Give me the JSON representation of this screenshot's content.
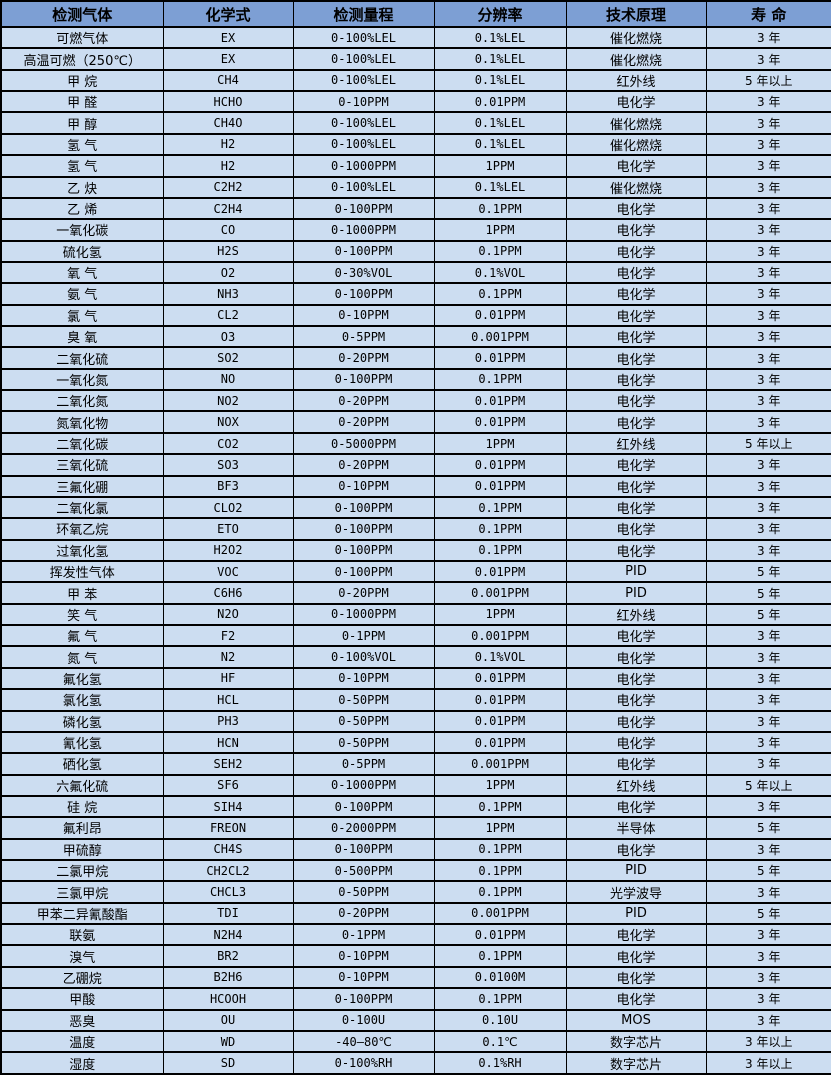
{
  "table": {
    "headers": [
      "检测气体",
      "化学式",
      "检测量程",
      "分辨率",
      "技术原理",
      "寿 命"
    ],
    "column_keys": [
      "gas",
      "formula",
      "range",
      "resolution",
      "principle",
      "lifespan"
    ],
    "rows": [
      [
        "可燃气体",
        "EX",
        "0-100%LEL",
        "0.1%LEL",
        "催化燃烧",
        "3 年"
      ],
      [
        "高温可燃（250℃）",
        "EX",
        "0-100%LEL",
        "0.1%LEL",
        "催化燃烧",
        "3 年"
      ],
      [
        "甲 烷",
        "CH4",
        "0-100%LEL",
        "0.1%LEL",
        "红外线",
        "5 年以上"
      ],
      [
        "甲 醛",
        "HCHO",
        "0-10PPM",
        "0.01PPM",
        "电化学",
        "3 年"
      ],
      [
        "甲 醇",
        "CH4O",
        "0-100%LEL",
        "0.1%LEL",
        "催化燃烧",
        "3 年"
      ],
      [
        "氢 气",
        "H2",
        "0-100%LEL",
        "0.1%LEL",
        "催化燃烧",
        "3 年"
      ],
      [
        "氢 气",
        "H2",
        "0-1000PPM",
        "1PPM",
        "电化学",
        "3 年"
      ],
      [
        "乙 炔",
        "C2H2",
        "0-100%LEL",
        "0.1%LEL",
        "催化燃烧",
        "3 年"
      ],
      [
        "乙 烯",
        "C2H4",
        "0-100PPM",
        "0.1PPM",
        "电化学",
        "3 年"
      ],
      [
        "一氧化碳",
        "CO",
        "0-1000PPM",
        "1PPM",
        "电化学",
        "3 年"
      ],
      [
        "硫化氢",
        "H2S",
        "0-100PPM",
        "0.1PPM",
        "电化学",
        "3 年"
      ],
      [
        "氧 气",
        "O2",
        "0-30%VOL",
        "0.1%VOL",
        "电化学",
        "3 年"
      ],
      [
        "氨 气",
        "NH3",
        "0-100PPM",
        "0.1PPM",
        "电化学",
        "3 年"
      ],
      [
        "氯 气",
        "CL2",
        "0-10PPM",
        "0.01PPM",
        "电化学",
        "3 年"
      ],
      [
        "臭 氧",
        "O3",
        "0-5PPM",
        "0.001PPM",
        "电化学",
        "3 年"
      ],
      [
        "二氧化硫",
        "SO2",
        "0-20PPM",
        "0.01PPM",
        "电化学",
        "3 年"
      ],
      [
        "一氧化氮",
        "NO",
        "0-100PPM",
        "0.1PPM",
        "电化学",
        "3 年"
      ],
      [
        "二氧化氮",
        "NO2",
        "0-20PPM",
        "0.01PPM",
        "电化学",
        "3 年"
      ],
      [
        "氮氧化物",
        "NOX",
        "0-20PPM",
        "0.01PPM",
        "电化学",
        "3 年"
      ],
      [
        "二氧化碳",
        "CO2",
        "0-5000PPM",
        "1PPM",
        "红外线",
        "5 年以上"
      ],
      [
        "三氧化硫",
        "SO3",
        "0-20PPM",
        "0.01PPM",
        "电化学",
        "3 年"
      ],
      [
        "三氟化硼",
        "BF3",
        "0-10PPM",
        "0.01PPM",
        "电化学",
        "3 年"
      ],
      [
        "二氧化氯",
        "CLO2",
        "0-100PPM",
        "0.1PPM",
        "电化学",
        "3 年"
      ],
      [
        "环氧乙烷",
        "ETO",
        "0-100PPM",
        "0.1PPM",
        "电化学",
        "3 年"
      ],
      [
        "过氧化氢",
        "H2O2",
        "0-100PPM",
        "0.1PPM",
        "电化学",
        "3 年"
      ],
      [
        "挥发性气体",
        "VOC",
        "0-100PPM",
        "0.01PPM",
        "PID",
        "5 年"
      ],
      [
        "甲 苯",
        "C6H6",
        "0-20PPM",
        "0.001PPM",
        "PID",
        "5 年"
      ],
      [
        "笑 气",
        "N2O",
        "0-1000PPM",
        "1PPM",
        "红外线",
        "5 年"
      ],
      [
        "氟 气",
        "F2",
        "0-1PPM",
        "0.001PPM",
        "电化学",
        "3 年"
      ],
      [
        "氮 气",
        "N2",
        "0-100%VOL",
        "0.1%VOL",
        "电化学",
        "3 年"
      ],
      [
        "氟化氢",
        "HF",
        "0-10PPM",
        "0.01PPM",
        "电化学",
        "3 年"
      ],
      [
        "氯化氢",
        "HCL",
        "0-50PPM",
        "0.01PPM",
        "电化学",
        "3 年"
      ],
      [
        "磷化氢",
        "PH3",
        "0-50PPM",
        "0.01PPM",
        "电化学",
        "3 年"
      ],
      [
        "氰化氢",
        "HCN",
        "0-50PPM",
        "0.01PPM",
        "电化学",
        "3 年"
      ],
      [
        "硒化氢",
        "SEH2",
        "0-5PPM",
        "0.001PPM",
        "电化学",
        "3 年"
      ],
      [
        "六氟化硫",
        "SF6",
        "0-1000PPM",
        "1PPM",
        "红外线",
        "5 年以上"
      ],
      [
        "硅 烷",
        "SIH4",
        "0-100PPM",
        "0.1PPM",
        "电化学",
        "3 年"
      ],
      [
        "氟利昂",
        "FREON",
        "0-2000PPM",
        "1PPM",
        "半导体",
        "5 年"
      ],
      [
        "甲硫醇",
        "CH4S",
        "0-100PPM",
        "0.1PPM",
        "电化学",
        "3 年"
      ],
      [
        "二氯甲烷",
        "CH2CL2",
        "0-500PPM",
        "0.1PPM",
        "PID",
        "5 年"
      ],
      [
        "三氯甲烷",
        "CHCL3",
        "0-50PPM",
        "0.1PPM",
        "光学波导",
        "3 年"
      ],
      [
        "甲苯二异氰酸酯",
        "TDI",
        "0-20PPM",
        "0.001PPM",
        "PID",
        "5 年"
      ],
      [
        "联氨",
        "N2H4",
        "0-1PPM",
        "0.01PPM",
        "电化学",
        "3 年"
      ],
      [
        "溴气",
        "BR2",
        "0-10PPM",
        "0.1PPM",
        "电化学",
        "3 年"
      ],
      [
        "乙硼烷",
        "B2H6",
        "0-10PPM",
        "0.0100M",
        "电化学",
        "3 年"
      ],
      [
        "甲酸",
        "HCOOH",
        "0-100PPM",
        "0.1PPM",
        "电化学",
        "3 年"
      ],
      [
        "恶臭",
        "OU",
        "0-100U",
        "0.10U",
        "MOS",
        "3 年"
      ],
      [
        "温度",
        "WD",
        "-40—80℃",
        "0.1℃",
        "数字芯片",
        "3 年以上"
      ],
      [
        "湿度",
        "SD",
        "0-100%RH",
        "0.1%RH",
        "数字芯片",
        "3 年以上"
      ]
    ],
    "colors": {
      "header_bg": "#7d9fd4",
      "row_bg": "#ccddf1",
      "border": "#000000",
      "text": "#000000"
    }
  }
}
